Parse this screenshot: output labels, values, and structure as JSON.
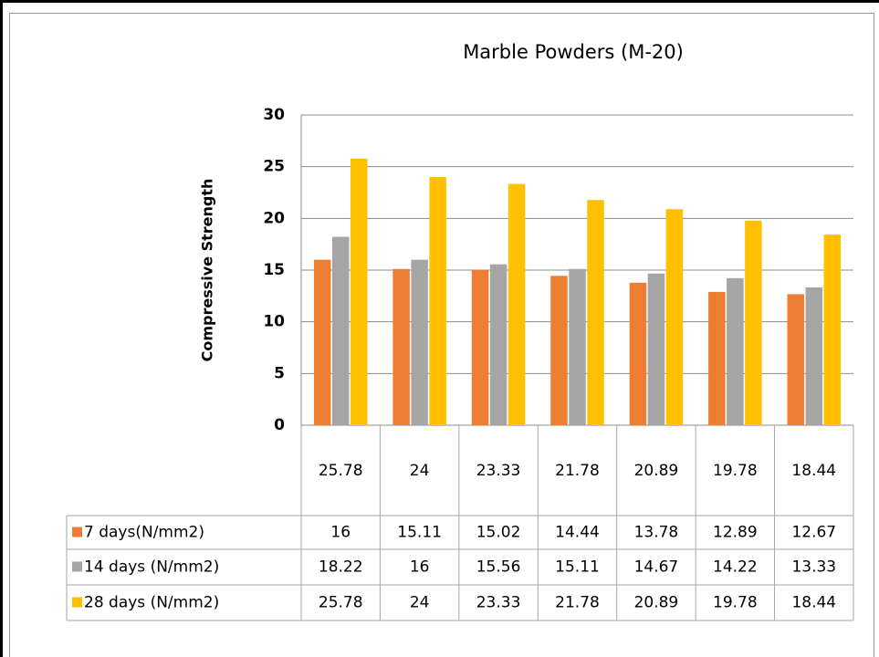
{
  "chart_data": {
    "type": "bar",
    "title": "Marble Powders  (M-20)",
    "y_label": "Compressive Strength",
    "categories": [
      "25.78",
      "24",
      "23.33",
      "21.78",
      "20.89",
      "19.78",
      "18.44"
    ],
    "series": [
      {
        "name": "7 days(N/mm2)",
        "color": "#ED7D31",
        "values": [
          16,
          15.11,
          15.02,
          14.44,
          13.78,
          12.89,
          12.67
        ]
      },
      {
        "name": "14 days (N/mm2)",
        "color": "#A5A5A5",
        "values": [
          18.22,
          16,
          15.56,
          15.11,
          14.67,
          14.22,
          13.33
        ]
      },
      {
        "name": "28 days (N/mm2)",
        "color": "#FFC000",
        "values": [
          25.78,
          24,
          23.33,
          21.78,
          20.89,
          19.78,
          18.44
        ]
      }
    ],
    "ylim": [
      0,
      30
    ],
    "yticks": [
      0,
      5,
      10,
      15,
      20,
      25,
      30
    ],
    "grid": true
  }
}
